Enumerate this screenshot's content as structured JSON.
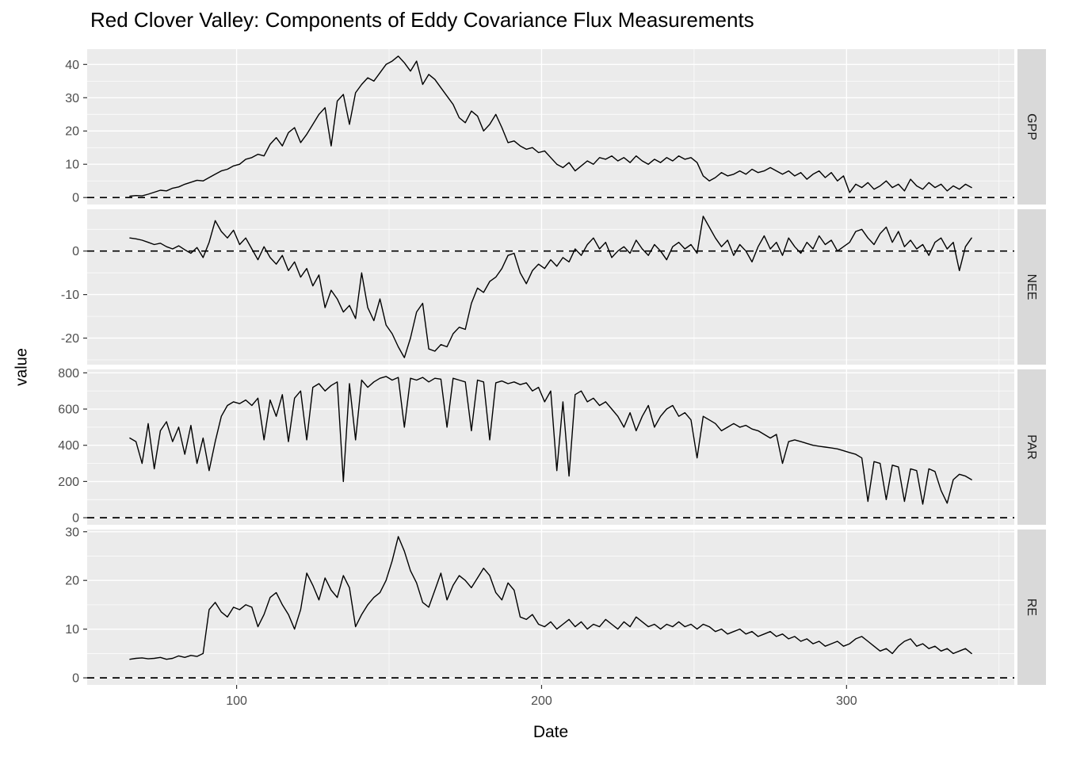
{
  "chart_data": {
    "type": "line",
    "title": "Red Clover Valley: Components of Eddy Covariance Flux Measurements",
    "xlabel": "Date",
    "ylabel": "value",
    "legend": "none",
    "grid": "on",
    "line_color": "#000000",
    "panel_bg": "#ebebeb",
    "strip_bg": "#d9d9d9",
    "grid_color": "#ffffff",
    "tick_text_color": "#4d4d4d",
    "tick_mark_color": "#333333",
    "strip_text_color": "#1a1a1a",
    "x_start": 65,
    "x_step": 2,
    "x_domain": [
      51,
      355
    ],
    "x_ticks": [
      100,
      200,
      300
    ],
    "x_minor_ticks": [
      50,
      150,
      250,
      350
    ],
    "facets": [
      {
        "name": "GPP",
        "hline": 0,
        "y_domain": [
          -2.1,
          44.6
        ],
        "y_ticks": [
          0,
          10,
          20,
          30,
          40
        ],
        "y_minor_ticks": [
          5,
          15,
          25,
          35
        ],
        "values": [
          0.4,
          0.6,
          0.5,
          1.0,
          1.6,
          2.2,
          2.0,
          2.8,
          3.2,
          4.0,
          4.6,
          5.2,
          5.0,
          6.0,
          7.0,
          8.0,
          8.5,
          9.5,
          10.0,
          11.5,
          12.0,
          13.0,
          12.5,
          16.0,
          18.0,
          15.5,
          19.5,
          21.0,
          16.5,
          19.0,
          22.0,
          25.0,
          27.0,
          15.5,
          29.0,
          31.0,
          22.0,
          31.5,
          34.0,
          36.0,
          35.0,
          37.5,
          40.0,
          41.0,
          42.5,
          40.5,
          38.0,
          41.0,
          34.0,
          37.0,
          35.5,
          33.0,
          30.5,
          28.0,
          24.0,
          22.5,
          26.0,
          24.5,
          20.0,
          22.0,
          25.0,
          21.0,
          16.5,
          17.0,
          15.5,
          14.5,
          15.0,
          13.5,
          14.0,
          12.0,
          10.0,
          9.0,
          10.5,
          8.0,
          9.5,
          11.0,
          10.0,
          12.0,
          11.5,
          12.5,
          11.0,
          12.0,
          10.5,
          12.5,
          11.0,
          10.0,
          11.5,
          10.5,
          12.0,
          11.0,
          12.5,
          11.5,
          12.0,
          10.5,
          6.5,
          5.0,
          6.0,
          7.5,
          6.5,
          7.0,
          8.0,
          7.0,
          8.5,
          7.5,
          8.0,
          9.0,
          8.0,
          7.0,
          8.0,
          6.5,
          7.5,
          5.5,
          7.0,
          8.0,
          6.0,
          7.5,
          5.0,
          6.5,
          1.5,
          4.0,
          3.0,
          4.5,
          2.5,
          3.5,
          5.0,
          3.0,
          4.0,
          2.0,
          5.5,
          3.5,
          2.5,
          4.5,
          3.0,
          4.0,
          2.0,
          3.5,
          2.5,
          4.0,
          3.0
        ]
      },
      {
        "name": "NEE",
        "hline": 0,
        "y_domain": [
          -26.1,
          9.6
        ],
        "y_ticks": [
          -20,
          -10,
          0
        ],
        "y_minor_ticks": [
          -25,
          -15,
          -5,
          5
        ],
        "values": [
          3.0,
          2.8,
          2.5,
          2.0,
          1.5,
          1.8,
          1.0,
          0.5,
          1.2,
          0.3,
          -0.5,
          0.8,
          -1.5,
          2.0,
          7.0,
          4.5,
          3.0,
          4.8,
          1.5,
          3.0,
          0.5,
          -2.0,
          1.0,
          -1.5,
          -3.0,
          -1.0,
          -4.5,
          -2.5,
          -6.0,
          -4.0,
          -8.0,
          -5.5,
          -13.0,
          -9.0,
          -11.0,
          -14.0,
          -12.5,
          -15.5,
          -5.0,
          -13.0,
          -16.0,
          -11.0,
          -17.0,
          -19.0,
          -22.0,
          -24.5,
          -20.0,
          -14.0,
          -12.0,
          -22.5,
          -23.0,
          -21.5,
          -22.0,
          -19.0,
          -17.5,
          -18.0,
          -12.0,
          -8.5,
          -9.5,
          -7.0,
          -6.0,
          -4.0,
          -1.0,
          -0.5,
          -5.0,
          -7.5,
          -4.5,
          -3.0,
          -4.0,
          -2.0,
          -3.5,
          -1.5,
          -2.5,
          0.5,
          -1.0,
          1.5,
          3.0,
          0.5,
          2.0,
          -1.5,
          0.0,
          1.0,
          -0.5,
          2.5,
          0.5,
          -1.0,
          1.5,
          0.0,
          -2.0,
          1.0,
          2.0,
          0.5,
          1.5,
          -0.5,
          8.0,
          5.5,
          3.0,
          1.0,
          2.5,
          -1.0,
          1.5,
          0.0,
          -2.5,
          1.0,
          3.5,
          0.5,
          2.0,
          -1.0,
          3.0,
          1.0,
          -0.5,
          2.0,
          0.5,
          3.5,
          1.5,
          2.5,
          0.0,
          1.0,
          2.0,
          4.5,
          5.0,
          3.0,
          1.5,
          4.0,
          5.5,
          2.0,
          4.5,
          1.0,
          2.5,
          0.5,
          1.5,
          -1.0,
          2.0,
          3.0,
          0.5,
          2.0,
          -4.5,
          1.0,
          3.0
        ]
      },
      {
        "name": "PAR",
        "hline": 0,
        "y_domain": [
          -39,
          819
        ],
        "y_ticks": [
          0,
          200,
          400,
          600,
          800
        ],
        "y_minor_ticks": [
          100,
          300,
          500,
          700
        ],
        "values": [
          440,
          420,
          300,
          520,
          270,
          480,
          530,
          420,
          500,
          350,
          510,
          300,
          440,
          260,
          420,
          560,
          620,
          640,
          630,
          650,
          620,
          660,
          430,
          650,
          560,
          680,
          420,
          660,
          700,
          430,
          720,
          740,
          700,
          730,
          750,
          200,
          740,
          430,
          760,
          720,
          750,
          770,
          780,
          760,
          775,
          500,
          770,
          760,
          775,
          750,
          770,
          765,
          500,
          770,
          760,
          750,
          480,
          760,
          750,
          430,
          745,
          755,
          740,
          750,
          735,
          745,
          700,
          720,
          640,
          700,
          260,
          640,
          230,
          680,
          700,
          640,
          660,
          620,
          640,
          600,
          560,
          500,
          580,
          480,
          560,
          620,
          500,
          560,
          600,
          620,
          560,
          580,
          540,
          330,
          560,
          540,
          520,
          480,
          500,
          520,
          500,
          510,
          490,
          480,
          460,
          440,
          460,
          300,
          420,
          430,
          420,
          410,
          400,
          395,
          390,
          385,
          380,
          370,
          360,
          350,
          330,
          90,
          310,
          300,
          100,
          290,
          280,
          90,
          270,
          260,
          75,
          270,
          255,
          150,
          80,
          210,
          240,
          230,
          210
        ]
      },
      {
        "name": "RE",
        "hline": 0,
        "y_domain": [
          -1.45,
          30.45
        ],
        "y_ticks": [
          0,
          10,
          20,
          30
        ],
        "y_minor_ticks": [
          5,
          15,
          25
        ],
        "values": [
          3.8,
          4.0,
          4.1,
          3.9,
          4.0,
          4.2,
          3.8,
          4.0,
          4.5,
          4.2,
          4.6,
          4.4,
          5.0,
          14.0,
          15.5,
          13.5,
          12.5,
          14.5,
          14.0,
          15.0,
          14.5,
          10.5,
          13.0,
          16.5,
          17.5,
          15.0,
          13.0,
          10.0,
          14.0,
          21.5,
          19.0,
          16.0,
          20.5,
          18.0,
          16.5,
          21.0,
          18.5,
          10.5,
          13.0,
          15.0,
          16.5,
          17.5,
          20.0,
          24.0,
          29.0,
          26.0,
          22.0,
          19.5,
          15.5,
          14.5,
          18.0,
          21.5,
          16.0,
          19.0,
          21.0,
          20.0,
          18.5,
          20.5,
          22.5,
          21.0,
          17.5,
          16.0,
          19.5,
          18.0,
          12.5,
          12.0,
          13.0,
          11.0,
          10.5,
          11.5,
          10.0,
          11.0,
          12.0,
          10.5,
          11.5,
          10.0,
          11.0,
          10.5,
          12.0,
          11.0,
          10.0,
          11.5,
          10.5,
          12.5,
          11.5,
          10.5,
          11.0,
          10.0,
          11.0,
          10.5,
          11.5,
          10.5,
          11.0,
          10.0,
          11.0,
          10.5,
          9.5,
          10.0,
          9.0,
          9.5,
          10.0,
          9.0,
          9.5,
          8.5,
          9.0,
          9.5,
          8.5,
          9.0,
          8.0,
          8.5,
          7.5,
          8.0,
          7.0,
          7.5,
          6.5,
          7.0,
          7.5,
          6.5,
          7.0,
          8.0,
          8.5,
          7.5,
          6.5,
          5.5,
          6.0,
          5.0,
          6.5,
          7.5,
          8.0,
          6.5,
          7.0,
          6.0,
          6.5,
          5.5,
          6.0,
          5.0,
          5.5,
          6.0,
          5.0
        ]
      }
    ]
  }
}
